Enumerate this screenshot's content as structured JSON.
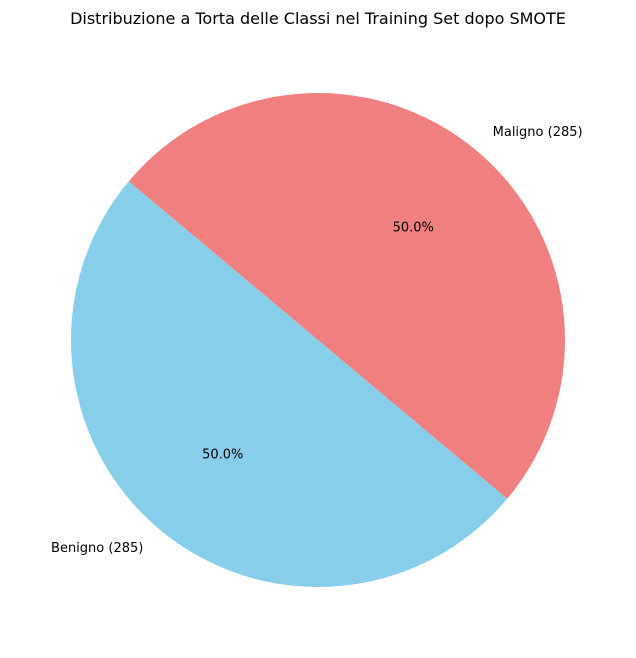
{
  "chart_data": {
    "type": "pie",
    "title": "Distribuzione a Torta delle Classi nel Training Set dopo SMOTE",
    "slices": [
      {
        "label": "Benigno (285)",
        "value": 285,
        "percent_label": "50.0%",
        "color": "#87CEEB"
      },
      {
        "label": "Maligno (285)",
        "value": 285,
        "percent_label": "50.0%",
        "color": "#F08080"
      }
    ],
    "start_angle_deg": 140,
    "direction": "counterclockwise"
  }
}
